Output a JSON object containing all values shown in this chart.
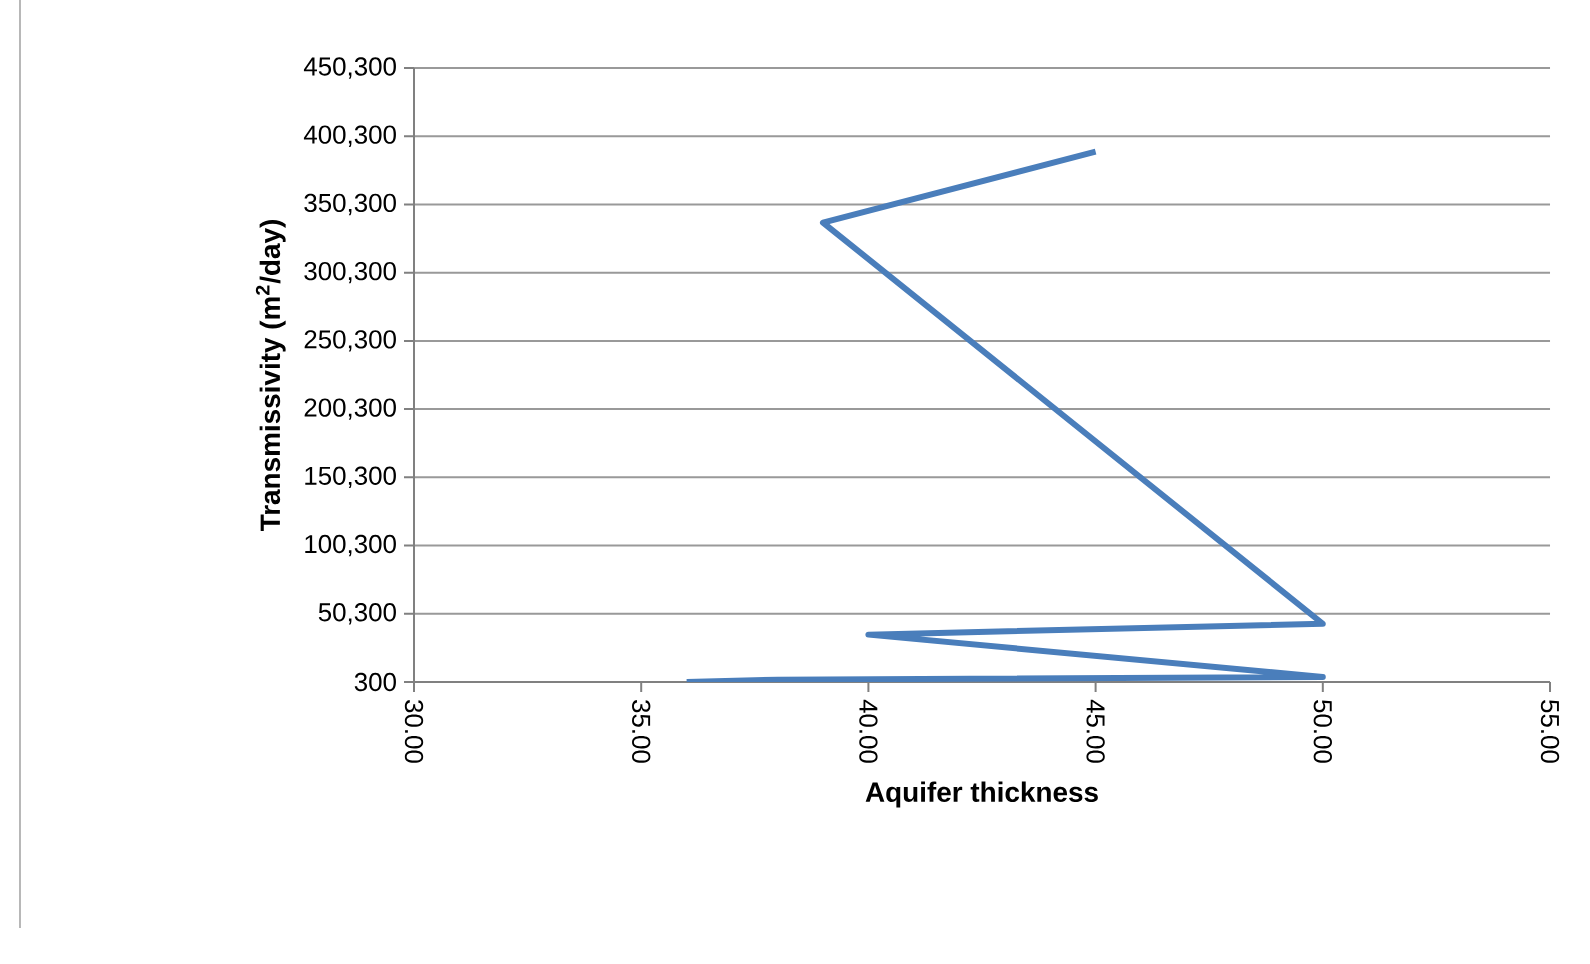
{
  "chart_data": {
    "type": "line",
    "xlabel": "Aquifer thickness",
    "ylabel": "Transmissivity (m$^{2}$/day)",
    "series": [
      {
        "color": "#4a7ebb",
        "x": [
          36,
          38,
          50,
          40,
          50,
          39,
          45
        ],
        "values": [
          300,
          2000,
          4000,
          35000,
          43000,
          337000,
          389000
        ]
      }
    ],
    "xlim": [
      30,
      55
    ],
    "xticks": [
      {
        "value": 30,
        "label": "30.00"
      },
      {
        "value": 35,
        "label": "35.00"
      },
      {
        "value": 40,
        "label": "40.00"
      },
      {
        "value": 45,
        "label": "45.00"
      },
      {
        "value": 50,
        "label": "50.00"
      },
      {
        "value": 55,
        "label": "55.00"
      }
    ],
    "ylim": [
      300,
      450300
    ],
    "yticks": [
      {
        "value": 300,
        "label": "300"
      },
      {
        "value": 50300,
        "label": "50,300"
      },
      {
        "value": 100300,
        "label": "100,300"
      },
      {
        "value": 150300,
        "label": "150,300"
      },
      {
        "value": 200300,
        "label": "200,300"
      },
      {
        "value": 250300,
        "label": "250,300"
      },
      {
        "value": 300300,
        "label": "300,300"
      },
      {
        "value": 350300,
        "label": "350,300"
      },
      {
        "value": 400300,
        "label": "400,300"
      },
      {
        "value": 450300,
        "label": "450,300"
      }
    ],
    "grid": "y",
    "marker": "none",
    "line_style": "solid"
  }
}
